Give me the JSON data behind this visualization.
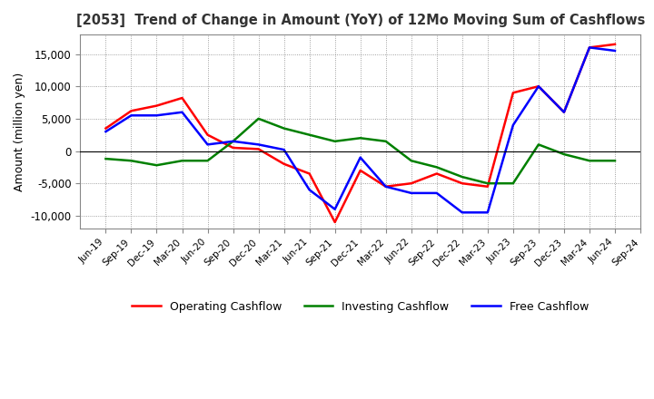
{
  "title": "[2053]  Trend of Change in Amount (YoY) of 12Mo Moving Sum of Cashflows",
  "ylabel": "Amount (million yen)",
  "x_labels": [
    "Jun-19",
    "Sep-19",
    "Dec-19",
    "Mar-20",
    "Jun-20",
    "Sep-20",
    "Dec-20",
    "Mar-21",
    "Jun-21",
    "Sep-21",
    "Dec-21",
    "Mar-22",
    "Jun-22",
    "Sep-22",
    "Dec-22",
    "Mar-23",
    "Jun-23",
    "Sep-23",
    "Dec-23",
    "Mar-24",
    "Jun-24",
    "Sep-24"
  ],
  "operating_cashflow": [
    3500,
    6200,
    7000,
    8200,
    2500,
    500,
    300,
    -2000,
    -3500,
    -11000,
    -3000,
    -5500,
    -5000,
    -3500,
    -5000,
    -5500,
    9000,
    10000,
    6000,
    16000,
    16500,
    null
  ],
  "investing_cashflow": [
    -1200,
    -1500,
    -2200,
    -1500,
    -1500,
    1500,
    5000,
    3500,
    2500,
    1500,
    2000,
    1500,
    -1500,
    -2500,
    -4000,
    -5000,
    -5000,
    1000,
    -500,
    -1500,
    -1500,
    null
  ],
  "free_cashflow": [
    3000,
    5500,
    5500,
    6000,
    1000,
    1500,
    1000,
    200,
    -6000,
    -9000,
    -1000,
    -5500,
    -6500,
    -6500,
    -9500,
    -9500,
    4000,
    10000,
    6000,
    16000,
    15500,
    null
  ],
  "ylim": [
    -12000,
    18000
  ],
  "yticks": [
    -10000,
    -5000,
    0,
    5000,
    10000,
    15000
  ],
  "colors": {
    "operating": "#ff0000",
    "investing": "#008000",
    "free": "#0000ff"
  },
  "grid_color": "#888888",
  "background_color": "#ffffff",
  "spine_color": "#888888"
}
